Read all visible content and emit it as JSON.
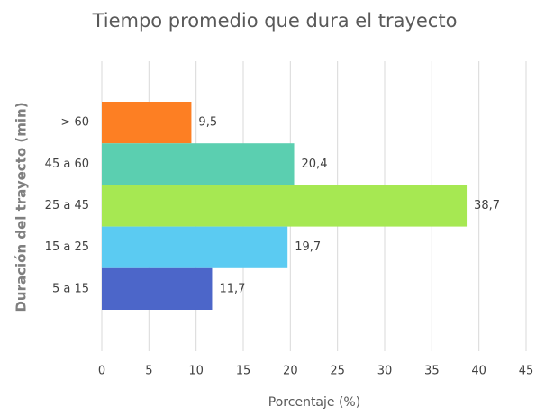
{
  "chart_data": {
    "type": "bar",
    "orientation": "horizontal",
    "title": "Tiempo promedio que dura el trayecto",
    "x_label": "Porcentaje (%)",
    "y_label": "Duración del trayecto (min)",
    "categories": [
      "> 60",
      "45 a 60",
      "25 a 45",
      "15 a 25",
      "5 a 15"
    ],
    "values": [
      9.5,
      20.4,
      38.7,
      19.7,
      11.7
    ],
    "value_labels": [
      "9,5",
      "20,4",
      "38,7",
      "19,7",
      "11,7"
    ],
    "colors": [
      "#fd7f23",
      "#5bcfb0",
      "#a6e852",
      "#5bcbf2",
      "#4c66c9"
    ],
    "xlim": [
      0,
      45
    ],
    "xticks": [
      0,
      5,
      10,
      15,
      20,
      25,
      30,
      35,
      40,
      45
    ],
    "grid": true
  }
}
